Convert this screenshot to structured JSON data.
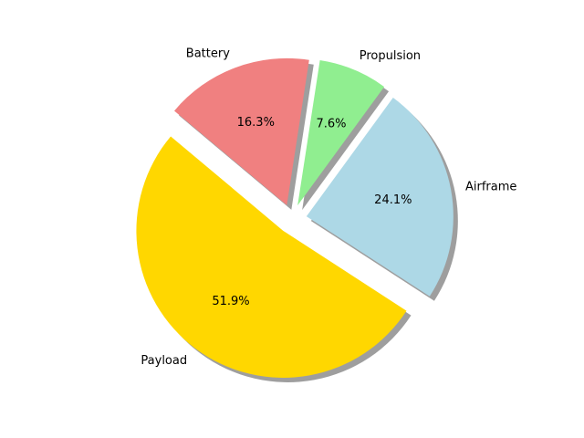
{
  "chart_data": {
    "type": "pie",
    "title": "",
    "categories": [
      "Payload",
      "Airframe",
      "Propulsion",
      "Battery"
    ],
    "values": [
      51.9,
      24.1,
      7.6,
      16.3
    ],
    "labels": {
      "Payload": "Payload",
      "Airframe": "Airframe",
      "Propulsion": "Propulsion",
      "Battery": "Battery"
    },
    "percent_labels": [
      "51.9%",
      "24.1%",
      "7.6%",
      "16.3%"
    ],
    "colors": [
      "#ffd700",
      "#add8e6",
      "#90ee90",
      "#f08080"
    ],
    "exploded": [
      0.1,
      0.1,
      0.1,
      0.1
    ],
    "shadow": true,
    "start_angle_deg": 140,
    "direction": "counterclockwise",
    "legend": "none"
  }
}
